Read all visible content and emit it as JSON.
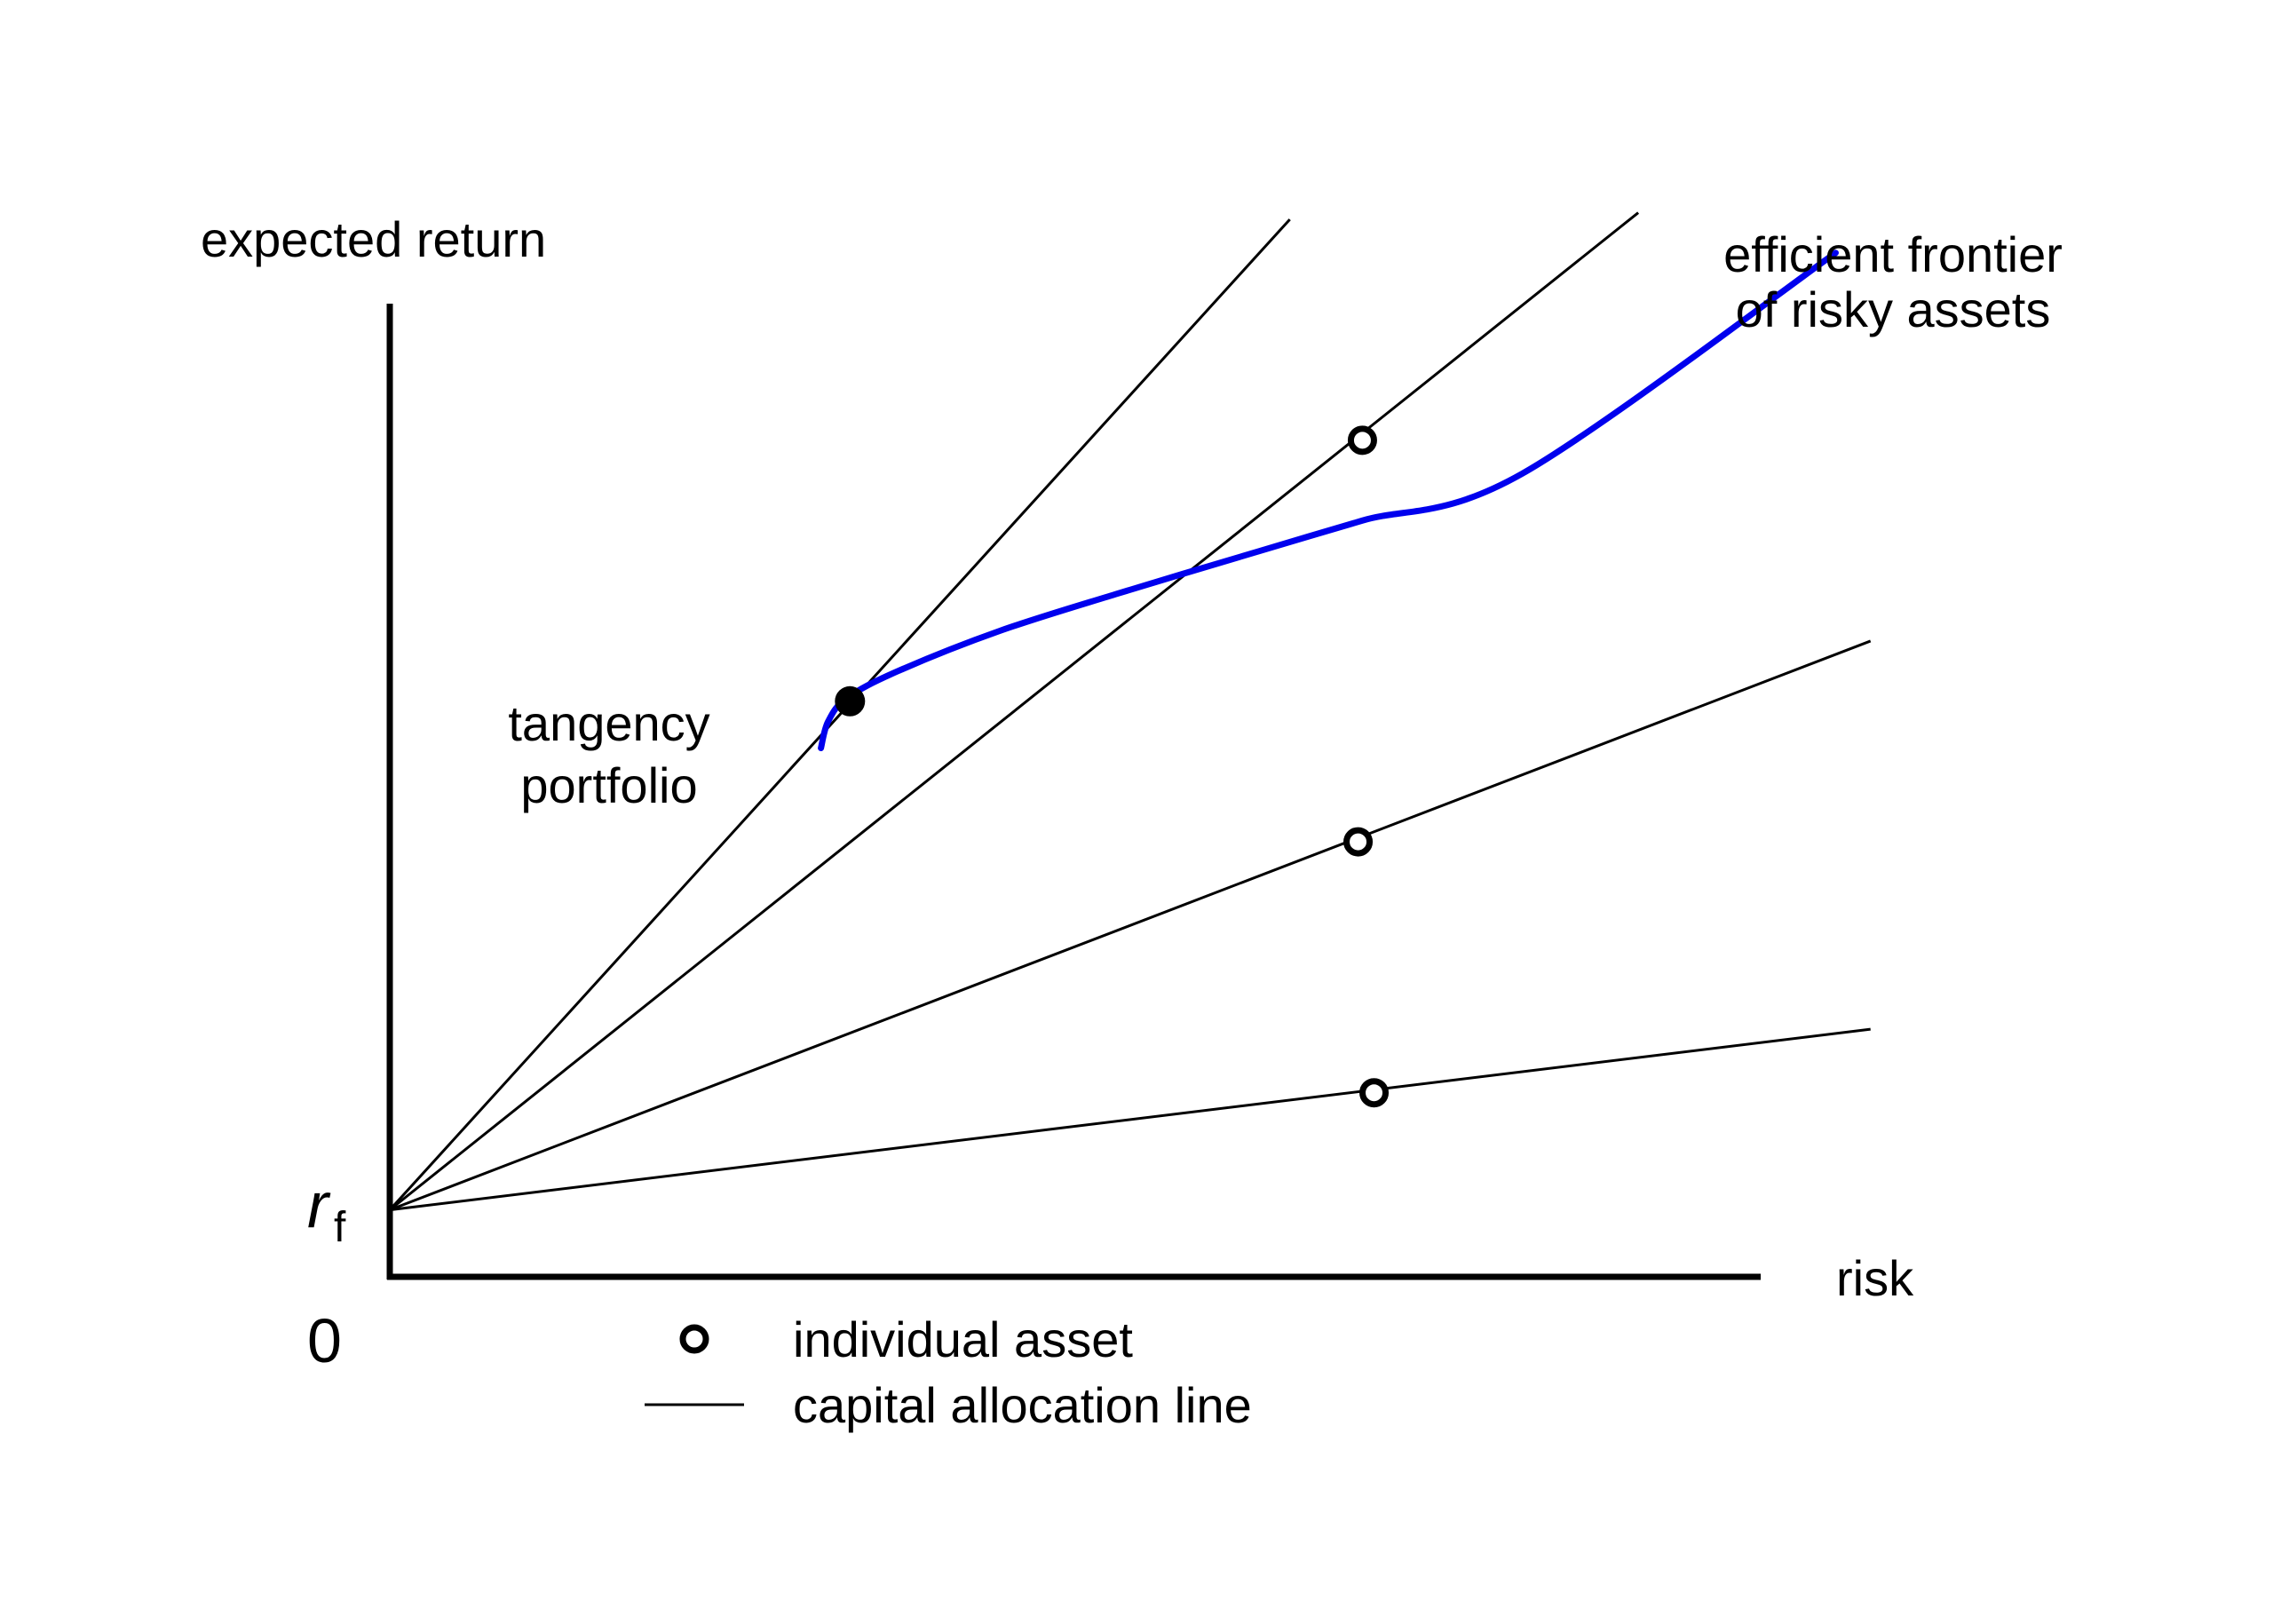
{
  "chart_data": {
    "type": "line",
    "title": "",
    "xlabel": "risk",
    "ylabel": "expected return",
    "origin_label": "0",
    "rf_label": "r",
    "rf_subscript": "f",
    "rf_value": 1.0,
    "xlim": [
      0,
      10
    ],
    "ylim": [
      0,
      16
    ],
    "capital_allocation_lines": [
      {
        "name": "CAL through tangency portfolio",
        "x": [
          0,
          6.2
        ],
        "y": [
          1.0,
          15.8
        ]
      },
      {
        "name": "CAL through asset 1",
        "x": [
          0,
          8.6
        ],
        "y": [
          1.0,
          15.9
        ]
      },
      {
        "name": "CAL through asset 2",
        "x": [
          0,
          10.2
        ],
        "y": [
          1.0,
          9.5
        ]
      },
      {
        "name": "CAL through asset 3",
        "x": [
          0,
          10.2
        ],
        "y": [
          1.0,
          3.7
        ]
      }
    ],
    "efficient_frontier": {
      "name": "efficient frontier of risky assets",
      "color": "#0000ee",
      "x": [
        2.97,
        3.02,
        3.15,
        3.5,
        4.2,
        5.0,
        6.0,
        6.7,
        7.8,
        9.96
      ],
      "y": [
        7.9,
        8.3,
        8.65,
        9.05,
        9.65,
        10.2,
        10.85,
        11.3,
        12.0,
        15.3
      ]
    },
    "tangency_portfolio": {
      "x": 3.17,
      "y": 8.6,
      "label_line1": "tangency",
      "label_line2": "portfolio"
    },
    "individual_assets": [
      {
        "x": 6.7,
        "y": 12.5
      },
      {
        "x": 6.67,
        "y": 6.5
      },
      {
        "x": 6.78,
        "y": 2.75
      }
    ],
    "annotations": {
      "frontier_line1": "efficient frontier",
      "frontier_line2": "of risky assets"
    },
    "legend": {
      "placement": "bottom-center",
      "entries": [
        {
          "marker": "open-circle",
          "label": "individual asset"
        },
        {
          "marker": "line",
          "label": "capital allocation line"
        }
      ]
    }
  }
}
